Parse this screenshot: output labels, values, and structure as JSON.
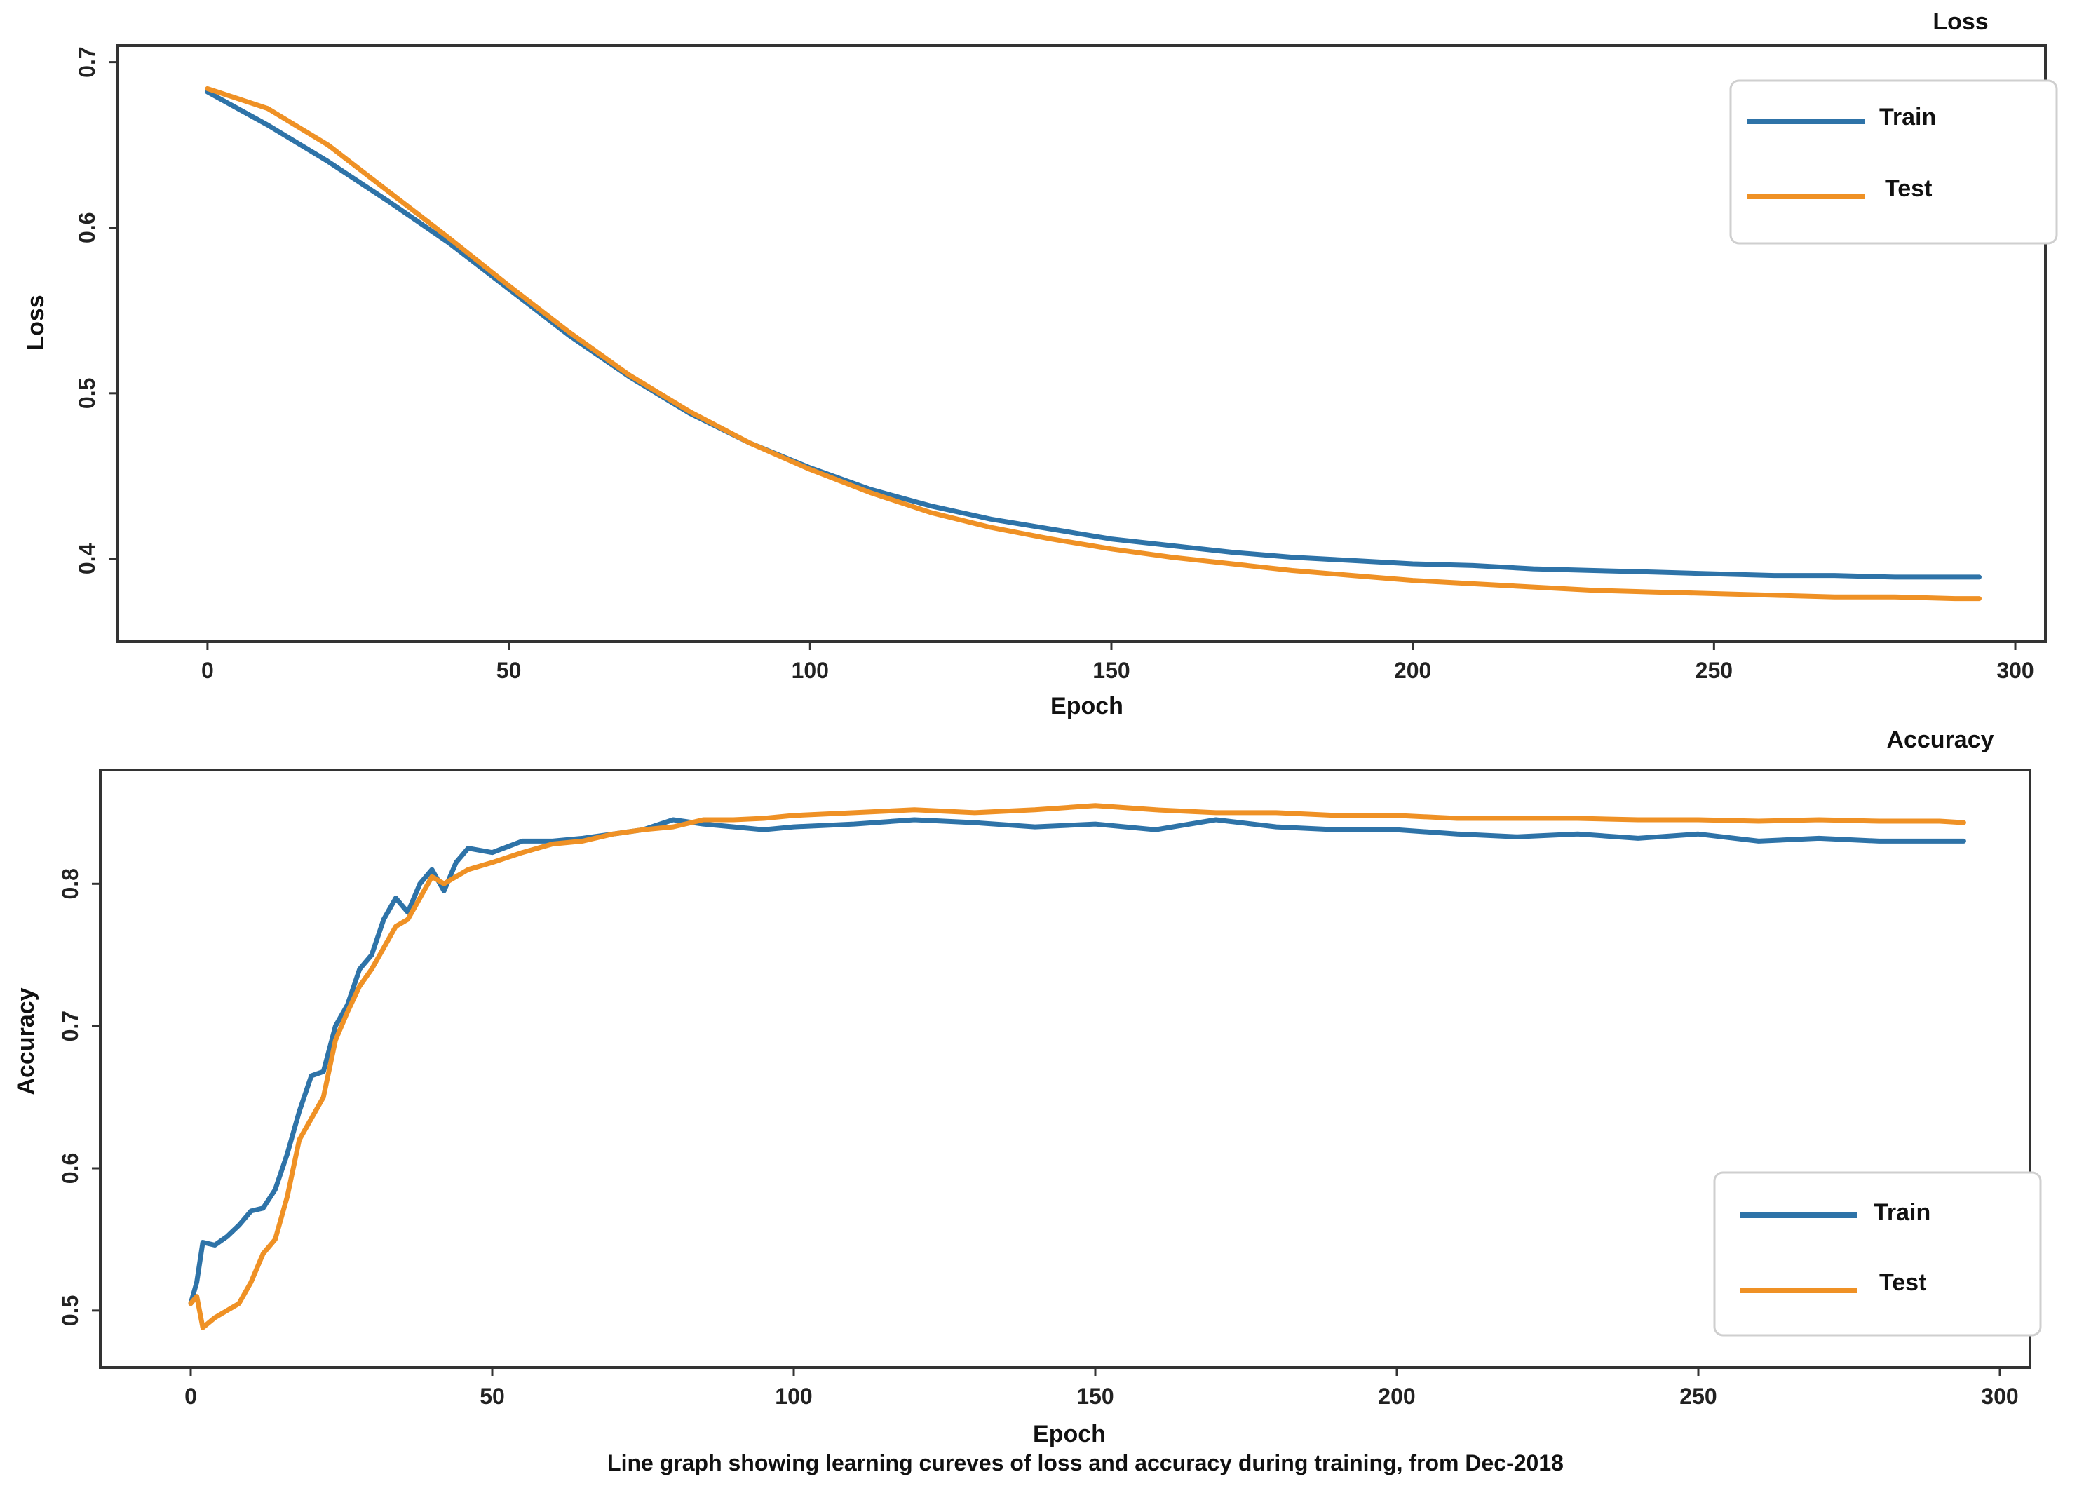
{
  "caption": "Line graph showing learning cureves of loss and accuracy during training, from Dec-2018",
  "colors": {
    "train": "#2e73a8",
    "test": "#ef9125"
  },
  "chart_data": [
    {
      "type": "line",
      "title": "Loss",
      "xlabel": "Epoch",
      "ylabel": "Loss",
      "xlim": [
        -15,
        305
      ],
      "ylim": [
        0.35,
        0.71
      ],
      "xticks": [
        0,
        50,
        100,
        150,
        200,
        250,
        300
      ],
      "xtick_labels": [
        "0",
        "50",
        "100",
        "150",
        "200",
        "250",
        "300"
      ],
      "yticks": [
        0.4,
        0.5,
        0.6,
        0.7
      ],
      "ytick_labels": [
        "0.4",
        "0.5",
        "0.6",
        "0.7"
      ],
      "legend": {
        "position": "top-right",
        "entries": [
          "Train",
          "Test"
        ]
      },
      "series": [
        {
          "name": "Train",
          "x": [
            0,
            10,
            20,
            30,
            40,
            50,
            60,
            70,
            80,
            90,
            100,
            110,
            120,
            130,
            140,
            150,
            160,
            170,
            180,
            190,
            200,
            210,
            220,
            230,
            240,
            250,
            260,
            270,
            280,
            290,
            294
          ],
          "y": [
            0.682,
            0.662,
            0.64,
            0.616,
            0.591,
            0.563,
            0.535,
            0.51,
            0.488,
            0.47,
            0.455,
            0.442,
            0.432,
            0.424,
            0.418,
            0.412,
            0.408,
            0.404,
            0.401,
            0.399,
            0.397,
            0.396,
            0.394,
            0.393,
            0.392,
            0.391,
            0.39,
            0.39,
            0.389,
            0.389,
            0.389
          ]
        },
        {
          "name": "Test",
          "x": [
            0,
            10,
            20,
            30,
            40,
            50,
            60,
            70,
            80,
            90,
            100,
            110,
            120,
            130,
            140,
            150,
            160,
            170,
            180,
            190,
            200,
            210,
            220,
            230,
            240,
            250,
            260,
            270,
            280,
            290,
            294
          ],
          "y": [
            0.684,
            0.672,
            0.65,
            0.622,
            0.594,
            0.565,
            0.537,
            0.511,
            0.489,
            0.47,
            0.454,
            0.44,
            0.428,
            0.419,
            0.412,
            0.406,
            0.401,
            0.397,
            0.393,
            0.39,
            0.387,
            0.385,
            0.383,
            0.381,
            0.38,
            0.379,
            0.378,
            0.377,
            0.377,
            0.376,
            0.376
          ]
        }
      ]
    },
    {
      "type": "line",
      "title": "Accuracy",
      "xlabel": "Epoch",
      "ylabel": "Accuracy",
      "xlim": [
        -15,
        305
      ],
      "ylim": [
        0.46,
        0.88
      ],
      "xticks": [
        0,
        50,
        100,
        150,
        200,
        250,
        300
      ],
      "xtick_labels": [
        "0",
        "50",
        "100",
        "150",
        "200",
        "250",
        "300"
      ],
      "yticks": [
        0.5,
        0.6,
        0.7,
        0.8
      ],
      "ytick_labels": [
        "0.5",
        "0.6",
        "0.7",
        "0.8"
      ],
      "legend": {
        "position": "bottom-right",
        "entries": [
          "Train",
          "Test"
        ]
      },
      "series": [
        {
          "name": "Train",
          "x": [
            0,
            1,
            2,
            4,
            6,
            8,
            10,
            12,
            14,
            16,
            18,
            20,
            22,
            24,
            26,
            28,
            30,
            32,
            34,
            36,
            38,
            40,
            42,
            44,
            46,
            50,
            55,
            60,
            65,
            70,
            75,
            80,
            85,
            90,
            95,
            100,
            110,
            120,
            130,
            140,
            150,
            160,
            170,
            180,
            190,
            200,
            210,
            220,
            230,
            240,
            250,
            260,
            270,
            280,
            290,
            294
          ],
          "y": [
            0.505,
            0.52,
            0.548,
            0.546,
            0.552,
            0.56,
            0.57,
            0.572,
            0.585,
            0.61,
            0.64,
            0.665,
            0.668,
            0.7,
            0.715,
            0.74,
            0.75,
            0.775,
            0.79,
            0.78,
            0.8,
            0.81,
            0.795,
            0.815,
            0.825,
            0.822,
            0.83,
            0.83,
            0.832,
            0.835,
            0.838,
            0.845,
            0.842,
            0.84,
            0.838,
            0.84,
            0.842,
            0.845,
            0.843,
            0.84,
            0.842,
            0.838,
            0.845,
            0.84,
            0.838,
            0.838,
            0.835,
            0.833,
            0.835,
            0.832,
            0.835,
            0.83,
            0.832,
            0.83,
            0.83,
            0.83
          ]
        },
        {
          "name": "Test",
          "x": [
            0,
            1,
            2,
            4,
            6,
            8,
            10,
            12,
            14,
            16,
            18,
            20,
            22,
            24,
            26,
            28,
            30,
            32,
            34,
            36,
            38,
            40,
            42,
            44,
            46,
            50,
            55,
            60,
            65,
            70,
            75,
            80,
            85,
            90,
            95,
            100,
            110,
            120,
            130,
            140,
            150,
            160,
            170,
            180,
            190,
            200,
            210,
            220,
            230,
            240,
            250,
            260,
            270,
            280,
            290,
            294
          ],
          "y": [
            0.505,
            0.51,
            0.488,
            0.495,
            0.5,
            0.505,
            0.52,
            0.54,
            0.55,
            0.58,
            0.62,
            0.635,
            0.65,
            0.69,
            0.71,
            0.728,
            0.74,
            0.755,
            0.77,
            0.775,
            0.79,
            0.805,
            0.8,
            0.805,
            0.81,
            0.815,
            0.822,
            0.828,
            0.83,
            0.835,
            0.838,
            0.84,
            0.845,
            0.845,
            0.846,
            0.848,
            0.85,
            0.852,
            0.85,
            0.852,
            0.855,
            0.852,
            0.85,
            0.85,
            0.848,
            0.848,
            0.846,
            0.846,
            0.846,
            0.845,
            0.845,
            0.844,
            0.845,
            0.844,
            0.844,
            0.843
          ]
        }
      ]
    }
  ]
}
